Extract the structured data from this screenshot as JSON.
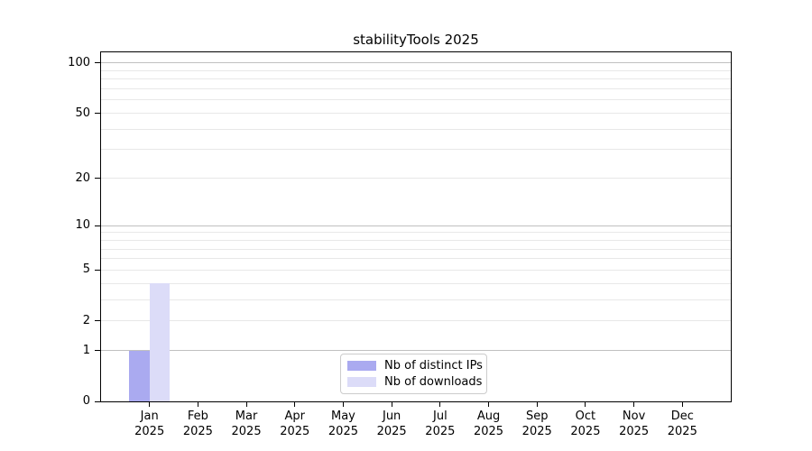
{
  "title": "stabilityTools 2025",
  "chart_data": {
    "type": "bar",
    "title": "stabilityTools 2025",
    "x_categories": [
      "Jan",
      "Feb",
      "Mar",
      "Apr",
      "May",
      "Jun",
      "Jul",
      "Aug",
      "Sep",
      "Oct",
      "Nov",
      "Dec"
    ],
    "x_year_suffix": "2025",
    "series": [
      {
        "name": "Nb of distinct IPs",
        "color": "#aaaaf0",
        "values": [
          1,
          0,
          0,
          0,
          0,
          0,
          0,
          0,
          0,
          0,
          0,
          0
        ]
      },
      {
        "name": "Nb of downloads",
        "color": "#dcdcf8",
        "values": [
          4,
          0,
          0,
          0,
          0,
          0,
          0,
          0,
          0,
          0,
          0,
          0
        ]
      }
    ],
    "yscale": "log10(1+x)",
    "ylim": [
      0,
      116
    ],
    "y_ticks": [
      0,
      1,
      2,
      5,
      10,
      20,
      50,
      100
    ],
    "y_major_grid": [
      1,
      10,
      100
    ],
    "y_minor_grid": [
      2,
      3,
      4,
      5,
      6,
      7,
      8,
      9,
      20,
      30,
      40,
      50,
      60,
      70,
      80,
      90
    ],
    "grid": "horizontal",
    "legend_position": "bottom-center"
  },
  "colors": {
    "distinct_ips_bar": "#aaaaf0",
    "downloads_bar": "#dcdcf8",
    "major_grid": "#c0c0c0",
    "minor_grid": "#e8e8e8",
    "axis": "#000000",
    "legend_border": "#cccccc",
    "background": "#ffffff",
    "text": "#000000"
  }
}
